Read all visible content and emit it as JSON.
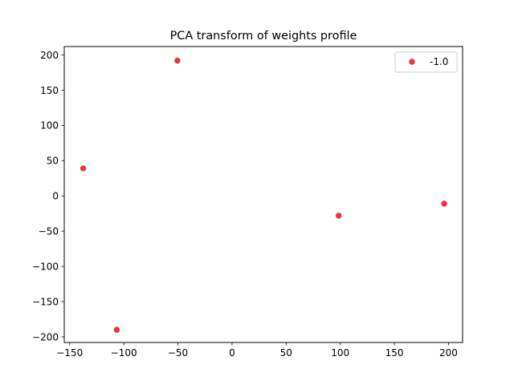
{
  "chart_data": {
    "type": "scatter",
    "title": "PCA transform of weights profile",
    "xlabel": "",
    "ylabel": "",
    "xlim": [
      -155,
      213
    ],
    "ylim": [
      -208,
      212
    ],
    "xticks": [
      -150,
      -100,
      -50,
      0,
      50,
      100,
      150,
      200
    ],
    "yticks": [
      -200,
      -150,
      -100,
      -50,
      0,
      50,
      100,
      150,
      200
    ],
    "grid": false,
    "legend_position": "top-right",
    "series": [
      {
        "name": "-1.0",
        "color": "#e8221f",
        "points": [
          {
            "x": -50.5,
            "y": 192
          },
          {
            "x": -137.5,
            "y": 39
          },
          {
            "x": -106.5,
            "y": -190
          },
          {
            "x": 98.5,
            "y": -28
          },
          {
            "x": 196,
            "y": -11
          }
        ]
      }
    ]
  }
}
